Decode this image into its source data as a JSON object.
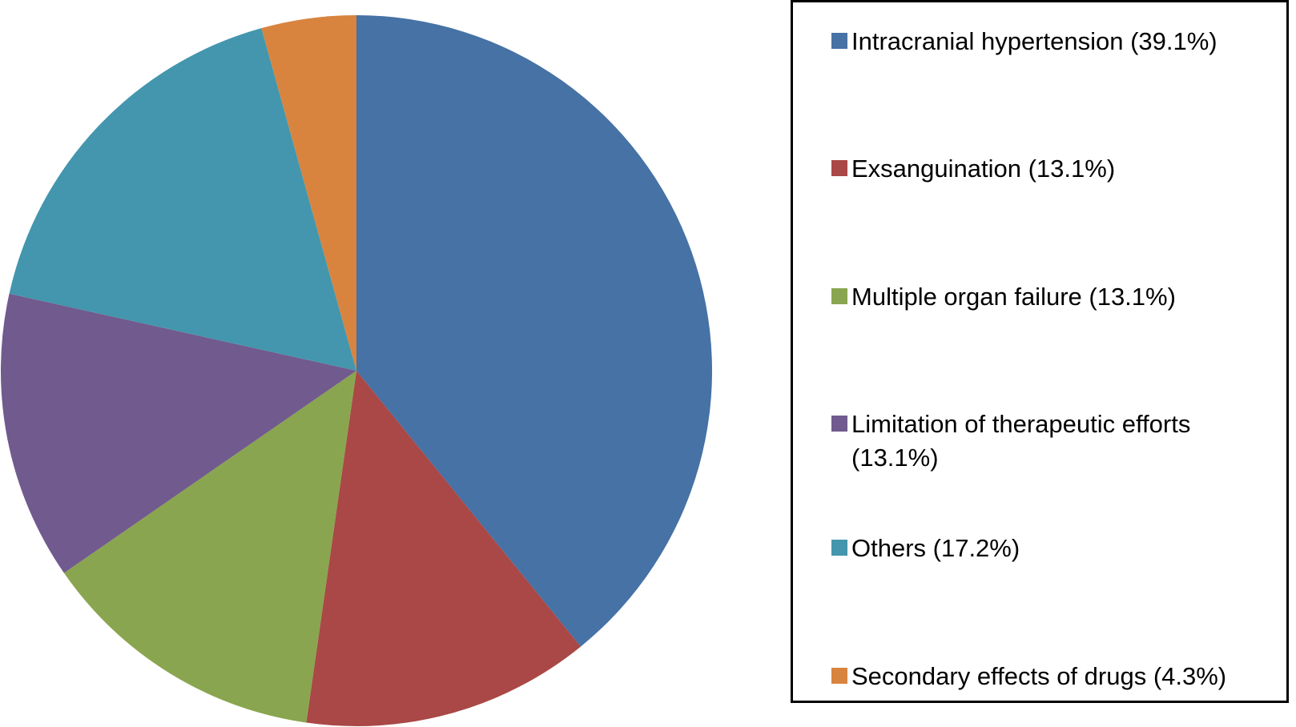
{
  "chart_data": {
    "type": "pie",
    "title": "",
    "start_angle_deg": 0,
    "direction": "clockwise",
    "categories": [
      "Intracranial hypertension",
      "Exsanguination",
      "Multiple organ failure",
      "Limitation of therapeutic efforts",
      "Others",
      "Secondary effects of drugs"
    ],
    "values": [
      39.1,
      13.1,
      13.1,
      13.1,
      17.2,
      4.3
    ],
    "colors": [
      "#4672A5",
      "#A94846",
      "#8AA54F",
      "#715A8E",
      "#4396AD",
      "#D8843F"
    ],
    "legend_position": "right"
  },
  "legend": {
    "items": [
      {
        "label": "Intracranial hypertension (39.1%)",
        "color": "#4672A5"
      },
      {
        "label": "Exsanguination (13.1%)",
        "color": "#A94846"
      },
      {
        "label": "Multiple organ failure (13.1%)",
        "color": "#8AA54F"
      },
      {
        "label": "Limitation of therapeutic efforts (13.1%)",
        "color": "#715A8E"
      },
      {
        "label": "Others (17.2%)",
        "color": "#4396AD"
      },
      {
        "label": "Secondary effects of drugs (4.3%)",
        "color": "#D8843F"
      }
    ]
  }
}
